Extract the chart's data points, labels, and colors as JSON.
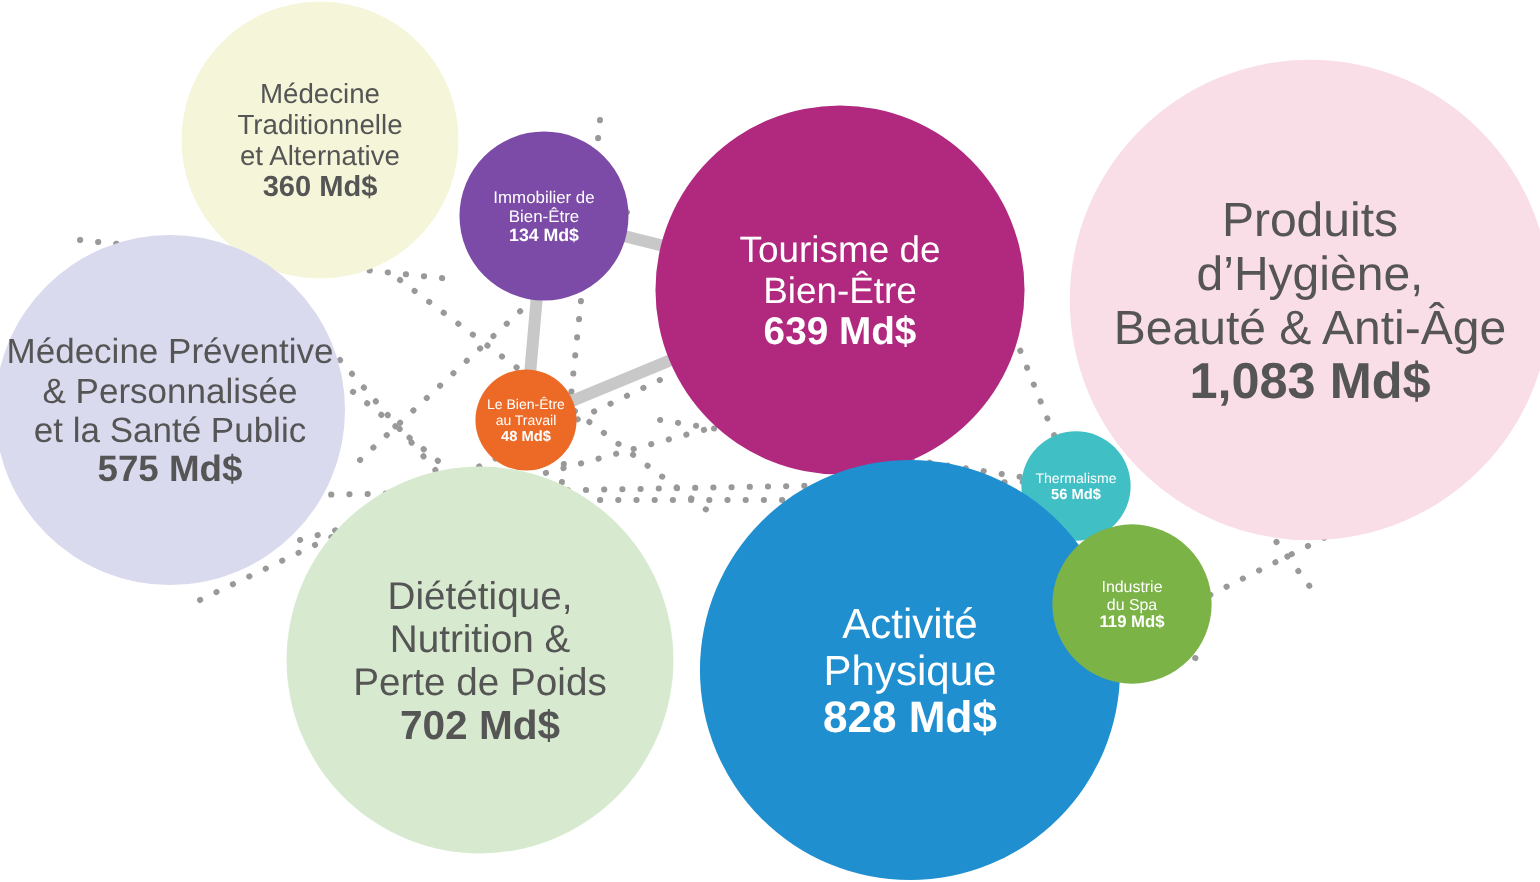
{
  "chart_data": {
    "type": "other",
    "categories": [
      "Médecine\nTraditionnelle\net Alternative",
      "Immobilier de\nBien-Être",
      "Tourisme de\nBien-Être",
      "Produits\nd’Hygiène,\nBeauté & Anti-Âge",
      "Médecine Préventive\n& Personnalisée\net la Santé Public",
      "Le Bien-Être\nau Travail",
      "Thermalisme",
      "Diététique,\nNutrition &\nPerte de Poids",
      "Activité\nPhysique",
      "Industrie\ndu Spa"
    ],
    "values": [
      360,
      134,
      639,
      1083,
      575,
      48,
      56,
      702,
      828,
      119
    ],
    "value_labels": [
      "360 Md$",
      "134 Md$",
      "639 Md$",
      "1,083 Md$",
      "575 Md$",
      "48 Md$",
      "56 Md$",
      "702 Md$",
      "828 Md$",
      "119 Md$"
    ],
    "colors": [
      "#f5f5d9",
      "#7b4ba7",
      "#b0297f",
      "#f9dde7",
      "#dadaef",
      "#ec6a25",
      "#40bfc5",
      "#d7eacf",
      "#1f8fd0",
      "#7bb347"
    ]
  }
}
